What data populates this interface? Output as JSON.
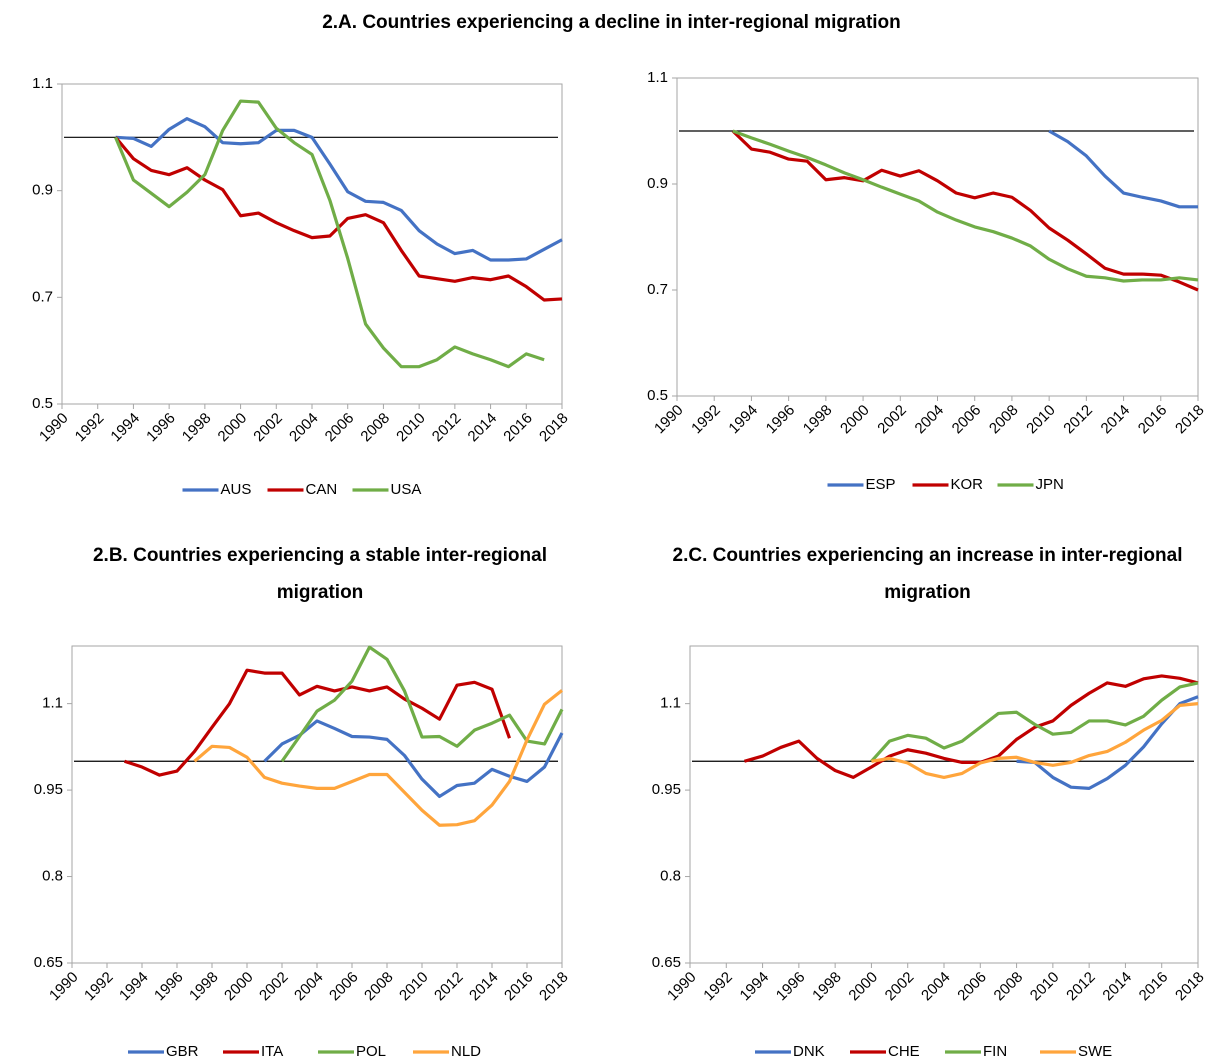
{
  "chart_data": [
    {
      "type": "line",
      "title": "2.A. Countries experiencing a decline in inter-regional migration",
      "x": [
        1990,
        1991,
        1992,
        1993,
        1994,
        1995,
        1996,
        1997,
        1998,
        1999,
        2000,
        2001,
        2002,
        2003,
        2004,
        2005,
        2006,
        2007,
        2008,
        2009,
        2010,
        2011,
        2012,
        2013,
        2014,
        2015,
        2016,
        2017,
        2018
      ],
      "xlim": [
        1990,
        2018
      ],
      "xticks": [
        1990,
        1992,
        1994,
        1996,
        1998,
        2000,
        2002,
        2004,
        2006,
        2008,
        2010,
        2012,
        2014,
        2016,
        2018
      ],
      "ylim": [
        0.5,
        1.1
      ],
      "yticks": [
        0.5,
        0.7,
        0.9,
        1.1
      ],
      "reference_line": 1,
      "series": [
        {
          "name": "AUS",
          "color": "#4472c4",
          "values": [
            null,
            null,
            null,
            1.0,
            0.998,
            0.983,
            1.015,
            1.035,
            1.02,
            0.99,
            0.988,
            0.99,
            1.013,
            1.013,
            1.0,
            0.95,
            0.898,
            0.88,
            0.878,
            0.863,
            0.825,
            0.8,
            0.782,
            0.788,
            0.77,
            0.77,
            0.772,
            0.79,
            0.808
          ]
        },
        {
          "name": "CAN",
          "color": "#c00000",
          "values": [
            null,
            null,
            null,
            1.0,
            0.96,
            0.938,
            0.93,
            0.943,
            0.92,
            0.902,
            0.853,
            0.858,
            0.84,
            0.825,
            0.812,
            0.815,
            0.848,
            0.855,
            0.84,
            0.788,
            0.74,
            0.735,
            0.73,
            0.737,
            0.733,
            0.74,
            0.72,
            0.695,
            0.697
          ]
        },
        {
          "name": "USA",
          "color": "#70ad47",
          "values": [
            null,
            null,
            null,
            1.0,
            0.92,
            0.895,
            0.87,
            0.897,
            0.93,
            1.013,
            1.068,
            1.066,
            1.017,
            0.99,
            0.968,
            0.882,
            0.773,
            0.65,
            0.605,
            0.57,
            0.57,
            0.583,
            0.607,
            0.594,
            0.583,
            0.57,
            0.594,
            0.583,
            null
          ]
        }
      ]
    },
    {
      "type": "line",
      "x": [
        1990,
        1991,
        1992,
        1993,
        1994,
        1995,
        1996,
        1997,
        1998,
        1999,
        2000,
        2001,
        2002,
        2003,
        2004,
        2005,
        2006,
        2007,
        2008,
        2009,
        2010,
        2011,
        2012,
        2013,
        2014,
        2015,
        2016,
        2017,
        2018
      ],
      "xlim": [
        1990,
        2018
      ],
      "xticks": [
        1990,
        1992,
        1994,
        1996,
        1998,
        2000,
        2002,
        2004,
        2006,
        2008,
        2010,
        2012,
        2014,
        2016,
        2018
      ],
      "ylim": [
        0.5,
        1.1
      ],
      "yticks": [
        0.5,
        0.7,
        0.9,
        1.1
      ],
      "reference_line": 1,
      "series": [
        {
          "name": "ESP",
          "color": "#4472c4",
          "values": [
            null,
            null,
            null,
            null,
            null,
            null,
            null,
            null,
            null,
            null,
            null,
            null,
            null,
            null,
            null,
            null,
            null,
            null,
            null,
            null,
            1.0,
            0.98,
            0.953,
            0.915,
            0.883,
            0.875,
            0.868,
            0.857,
            0.857
          ]
        },
        {
          "name": "KOR",
          "color": "#c00000",
          "values": [
            null,
            null,
            null,
            1.0,
            0.966,
            0.96,
            0.947,
            0.943,
            0.908,
            0.912,
            0.906,
            0.926,
            0.915,
            0.925,
            0.906,
            0.883,
            0.874,
            0.883,
            0.875,
            0.85,
            0.817,
            0.794,
            0.768,
            0.741,
            0.73,
            0.73,
            0.728,
            0.715,
            0.7
          ]
        },
        {
          "name": "JPN",
          "color": "#70ad47",
          "values": [
            null,
            null,
            null,
            1.0,
            0.987,
            0.975,
            0.962,
            0.95,
            0.936,
            0.921,
            0.908,
            0.894,
            0.881,
            0.868,
            0.847,
            0.832,
            0.819,
            0.81,
            0.798,
            0.783,
            0.758,
            0.74,
            0.726,
            0.723,
            0.717,
            0.719,
            0.719,
            0.723,
            0.719
          ]
        }
      ]
    },
    {
      "type": "line",
      "title": "2.B. Countries experiencing a stable inter-regional migration",
      "x": [
        1990,
        1991,
        1992,
        1993,
        1994,
        1995,
        1996,
        1997,
        1998,
        1999,
        2000,
        2001,
        2002,
        2003,
        2004,
        2005,
        2006,
        2007,
        2008,
        2009,
        2010,
        2011,
        2012,
        2013,
        2014,
        2015,
        2016,
        2017,
        2018
      ],
      "xlim": [
        1990,
        2018
      ],
      "xticks": [
        1990,
        1992,
        1994,
        1996,
        1998,
        2000,
        2002,
        2004,
        2006,
        2008,
        2010,
        2012,
        2014,
        2016,
        2018
      ],
      "ylim": [
        0.65,
        1.2
      ],
      "yticks": [
        0.65,
        0.8,
        0.95,
        1.1
      ],
      "reference_line": 1,
      "series": [
        {
          "name": "GBR",
          "color": "#4472c4",
          "values": [
            null,
            null,
            null,
            null,
            null,
            null,
            null,
            null,
            null,
            null,
            null,
            1.0,
            1.03,
            1.045,
            1.07,
            1.057,
            1.043,
            1.042,
            1.038,
            1.01,
            0.969,
            0.939,
            0.958,
            0.962,
            0.986,
            0.974,
            0.965,
            0.99,
            1.049
          ]
        },
        {
          "name": "ITA",
          "color": "#c00000",
          "values": [
            null,
            null,
            null,
            1.0,
            0.99,
            0.976,
            0.983,
            1.017,
            1.059,
            1.1,
            1.158,
            1.153,
            1.153,
            1.115,
            1.13,
            1.122,
            1.129,
            1.122,
            1.129,
            1.108,
            1.092,
            1.073,
            1.132,
            1.137,
            1.125,
            1.04,
            null,
            null,
            null
          ]
        },
        {
          "name": "POL",
          "color": "#70ad47",
          "values": [
            null,
            null,
            null,
            null,
            null,
            null,
            null,
            null,
            null,
            null,
            null,
            null,
            1.0,
            1.043,
            1.087,
            1.106,
            1.139,
            1.198,
            1.177,
            1.122,
            1.042,
            1.043,
            1.026,
            1.054,
            1.066,
            1.08,
            1.035,
            1.03,
            1.09
          ]
        },
        {
          "name": "NLD",
          "color": "#ffa53c",
          "values": [
            null,
            null,
            null,
            null,
            null,
            null,
            null,
            1.0,
            1.026,
            1.024,
            1.007,
            0.972,
            0.962,
            0.957,
            0.953,
            0.953,
            0.965,
            0.977,
            0.977,
            0.946,
            0.915,
            0.889,
            0.89,
            0.897,
            0.924,
            0.965,
            1.037,
            1.099,
            1.123
          ]
        }
      ]
    },
    {
      "type": "line",
      "title": "2.C. Countries experiencing an increase in inter-regional migration",
      "x": [
        1990,
        1991,
        1992,
        1993,
        1994,
        1995,
        1996,
        1997,
        1998,
        1999,
        2000,
        2001,
        2002,
        2003,
        2004,
        2005,
        2006,
        2007,
        2008,
        2009,
        2010,
        2011,
        2012,
        2013,
        2014,
        2015,
        2016,
        2017,
        2018
      ],
      "xlim": [
        1990,
        2018
      ],
      "xticks": [
        1990,
        1992,
        1994,
        1996,
        1998,
        2000,
        2002,
        2004,
        2006,
        2008,
        2010,
        2012,
        2014,
        2016,
        2018
      ],
      "ylim": [
        0.65,
        1.2
      ],
      "yticks": [
        0.65,
        0.8,
        0.95,
        1.1
      ],
      "reference_line": 1,
      "series": [
        {
          "name": "DNK",
          "color": "#4472c4",
          "values": [
            null,
            null,
            null,
            null,
            null,
            null,
            null,
            null,
            null,
            null,
            null,
            null,
            null,
            null,
            null,
            null,
            null,
            null,
            1.0,
            0.998,
            0.972,
            0.955,
            0.953,
            0.97,
            0.993,
            1.025,
            1.065,
            1.1,
            1.112
          ]
        },
        {
          "name": "CHE",
          "color": "#c00000",
          "values": [
            null,
            null,
            null,
            1.0,
            1.009,
            1.024,
            1.035,
            1.005,
            0.984,
            0.972,
            0.99,
            1.009,
            1.02,
            1.014,
            1.005,
            0.998,
            0.998,
            1.009,
            1.038,
            1.059,
            1.07,
            1.097,
            1.118,
            1.136,
            1.13,
            1.143,
            1.148,
            1.144,
            1.136
          ]
        },
        {
          "name": "FIN",
          "color": "#70ad47",
          "values": [
            null,
            null,
            null,
            null,
            null,
            null,
            null,
            null,
            null,
            null,
            1.0,
            1.035,
            1.045,
            1.04,
            1.023,
            1.035,
            1.059,
            1.083,
            1.085,
            1.064,
            1.047,
            1.05,
            1.07,
            1.07,
            1.063,
            1.078,
            1.106,
            1.129,
            1.136
          ]
        },
        {
          "name": "SWE",
          "color": "#ffa53c",
          "values": [
            null,
            null,
            null,
            null,
            null,
            null,
            null,
            null,
            null,
            null,
            1.0,
            1.005,
            0.997,
            0.979,
            0.972,
            0.979,
            0.997,
            1.005,
            1.007,
            0.998,
            0.993,
            0.998,
            1.01,
            1.017,
            1.033,
            1.054,
            1.071,
            1.097,
            1.1
          ]
        }
      ]
    }
  ]
}
